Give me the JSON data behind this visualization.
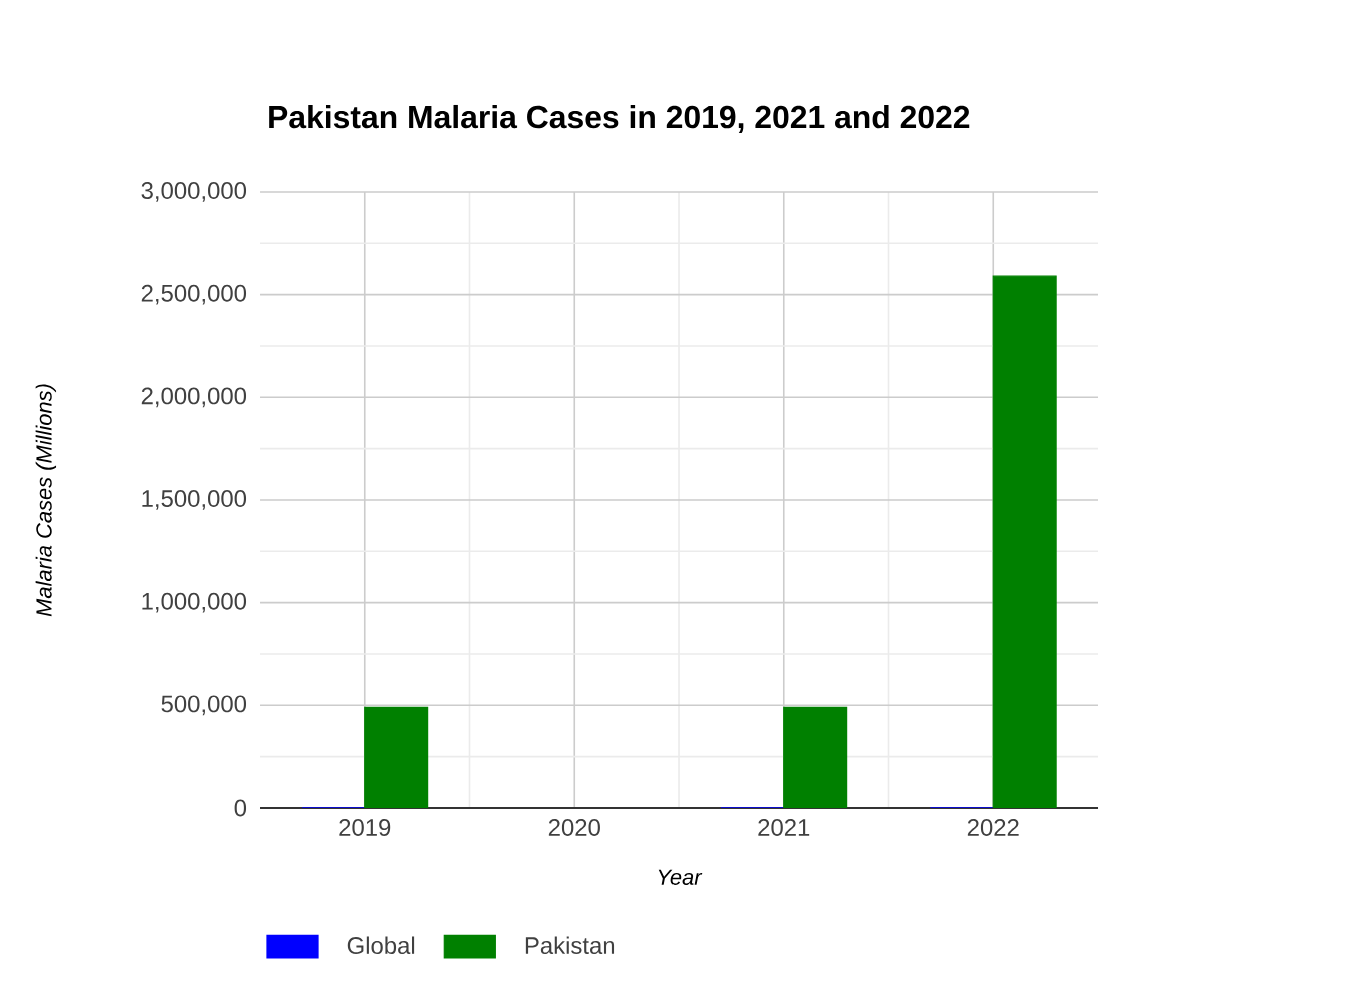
{
  "chart_data": {
    "type": "bar",
    "title": "Pakistan Malaria Cases in 2019, 2021 and 2022",
    "xlabel": "Year",
    "ylabel": "Malaria Cases (Millions)",
    "x": [
      2019,
      2020,
      2021,
      2022
    ],
    "xlim": [
      2018.5,
      2022.5
    ],
    "xticks": [
      2019,
      2020,
      2021,
      2022
    ],
    "ylim": [
      0,
      3000000
    ],
    "yticks": [
      {
        "value": 0,
        "label": "0"
      },
      {
        "value": 500000,
        "label": "500,000"
      },
      {
        "value": 1000000,
        "label": "1,000,000"
      },
      {
        "value": 1500000,
        "label": "1,500,000"
      },
      {
        "value": 2000000,
        "label": "2,000,000"
      },
      {
        "value": 2500000,
        "label": "2,500,000"
      },
      {
        "value": 3000000,
        "label": "3,000,000"
      }
    ],
    "series": [
      {
        "name": "Global",
        "color": "#0000ff",
        "values": [
          0,
          null,
          0,
          0
        ]
      },
      {
        "name": "Pakistan",
        "color": "#008000",
        "values": [
          490000,
          null,
          490000,
          2590000
        ]
      }
    ],
    "grid": true,
    "legend": "bottom left"
  }
}
